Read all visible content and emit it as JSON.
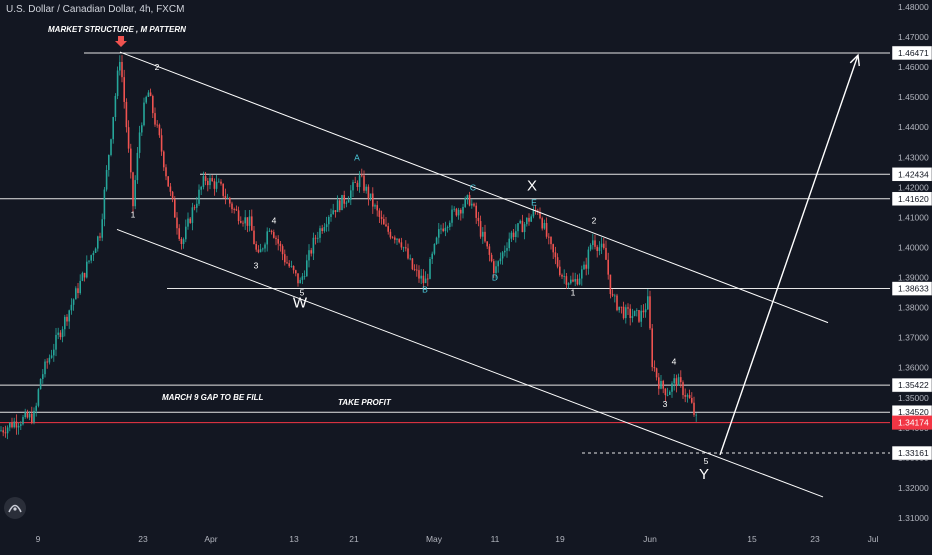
{
  "chart_title": "U.S. Dollar / Canadian Dollar, 4h, FXCM",
  "colors": {
    "background": "#131722",
    "up": "#26a69a",
    "down": "#ef5350",
    "line": "#ffffff",
    "axis_text": "#b2b5be",
    "current_price": "#f23645",
    "wave_label": "#ffffff",
    "correction_label": "#4dd0e1"
  },
  "chart_data": {
    "type": "candlestick",
    "symbol": "USDCAD",
    "timeframe": "4h",
    "ylim": [
      1.305,
      1.485
    ],
    "yticks": [
      "1.31000",
      "1.32000",
      "1.33000",
      "1.34000",
      "1.35000",
      "1.36000",
      "1.37000",
      "1.38000",
      "1.39000",
      "1.40000",
      "1.41000",
      "1.42000",
      "1.43000",
      "1.44000",
      "1.45000",
      "1.46000",
      "1.47000",
      "1.48000"
    ],
    "xticks": [
      "9",
      "23",
      "Apr",
      "13",
      "21",
      "May",
      "11",
      "19",
      "Jun",
      "15",
      "23",
      "Jul"
    ],
    "price_path": [
      {
        "x": 0,
        "y": 1.339
      },
      {
        "x": 15,
        "y": 1.342
      },
      {
        "x": 35,
        "y": 1.344
      },
      {
        "x": 40,
        "y": 1.356
      },
      {
        "x": 60,
        "y": 1.372
      },
      {
        "x": 80,
        "y": 1.388
      },
      {
        "x": 100,
        "y": 1.405
      },
      {
        "x": 110,
        "y": 1.435
      },
      {
        "x": 120,
        "y": 1.464
      },
      {
        "x": 126,
        "y": 1.442
      },
      {
        "x": 133,
        "y": 1.414
      },
      {
        "x": 140,
        "y": 1.44
      },
      {
        "x": 148,
        "y": 1.452
      },
      {
        "x": 160,
        "y": 1.435
      },
      {
        "x": 170,
        "y": 1.418
      },
      {
        "x": 182,
        "y": 1.401
      },
      {
        "x": 192,
        "y": 1.412
      },
      {
        "x": 205,
        "y": 1.423
      },
      {
        "x": 220,
        "y": 1.42
      },
      {
        "x": 235,
        "y": 1.412
      },
      {
        "x": 250,
        "y": 1.408
      },
      {
        "x": 258,
        "y": 1.396
      },
      {
        "x": 270,
        "y": 1.408
      },
      {
        "x": 285,
        "y": 1.396
      },
      {
        "x": 300,
        "y": 1.388
      },
      {
        "x": 315,
        "y": 1.403
      },
      {
        "x": 330,
        "y": 1.412
      },
      {
        "x": 345,
        "y": 1.416
      },
      {
        "x": 360,
        "y": 1.423
      },
      {
        "x": 372,
        "y": 1.415
      },
      {
        "x": 385,
        "y": 1.406
      },
      {
        "x": 400,
        "y": 1.403
      },
      {
        "x": 412,
        "y": 1.393
      },
      {
        "x": 425,
        "y": 1.388
      },
      {
        "x": 440,
        "y": 1.406
      },
      {
        "x": 455,
        "y": 1.412
      },
      {
        "x": 470,
        "y": 1.416
      },
      {
        "x": 482,
        "y": 1.404
      },
      {
        "x": 495,
        "y": 1.392
      },
      {
        "x": 510,
        "y": 1.404
      },
      {
        "x": 525,
        "y": 1.408
      },
      {
        "x": 538,
        "y": 1.413
      },
      {
        "x": 550,
        "y": 1.4
      },
      {
        "x": 562,
        "y": 1.391
      },
      {
        "x": 573,
        "y": 1.388
      },
      {
        "x": 585,
        "y": 1.393
      },
      {
        "x": 592,
        "y": 1.403
      },
      {
        "x": 605,
        "y": 1.398
      },
      {
        "x": 612,
        "y": 1.383
      },
      {
        "x": 625,
        "y": 1.378
      },
      {
        "x": 640,
        "y": 1.377
      },
      {
        "x": 648,
        "y": 1.382
      },
      {
        "x": 652,
        "y": 1.362
      },
      {
        "x": 660,
        "y": 1.354
      },
      {
        "x": 668,
        "y": 1.352
      },
      {
        "x": 676,
        "y": 1.356
      },
      {
        "x": 684,
        "y": 1.352
      },
      {
        "x": 690,
        "y": 1.349
      },
      {
        "x": 697,
        "y": 1.3417
      }
    ]
  },
  "price_levels": [
    {
      "price": 1.46471,
      "label": "1.46471",
      "style": "solid"
    },
    {
      "price": 1.42434,
      "label": "1.42434",
      "style": "solid"
    },
    {
      "price": 1.4162,
      "label": "1.41620",
      "style": "solid"
    },
    {
      "price": 1.38633,
      "label": "1.38633",
      "style": "solid"
    },
    {
      "price": 1.35422,
      "label": "1.35422",
      "style": "solid"
    },
    {
      "price": 1.3452,
      "label": "1.34520",
      "style": "solid"
    },
    {
      "price": 1.33161,
      "label": "1.33161",
      "style": "dashed"
    }
  ],
  "current_price": {
    "price": 1.34174,
    "label": "1.34174"
  },
  "channel": {
    "upper": [
      {
        "x": 120,
        "y": 1.465
      },
      {
        "x": 828,
        "y": 1.375
      }
    ],
    "lower": [
      {
        "x": 117,
        "y": 1.406
      },
      {
        "x": 823,
        "y": 1.317
      }
    ]
  },
  "projection_arrow": [
    {
      "x": 720,
      "y": 1.331
    },
    {
      "x": 858,
      "y": 1.464
    }
  ],
  "wave_labels": [
    {
      "text": "2",
      "x": 157,
      "y": 1.459,
      "color": "wave"
    },
    {
      "text": "1",
      "x": 133,
      "y": 1.41,
      "color": "wave"
    },
    {
      "text": "4",
      "x": 274,
      "y": 1.408,
      "color": "wave"
    },
    {
      "text": "3",
      "x": 256,
      "y": 1.393,
      "color": "wave"
    },
    {
      "text": "5",
      "x": 302,
      "y": 1.384,
      "color": "wave"
    },
    {
      "text": "W",
      "x": 300,
      "y": 1.38,
      "color": "wave",
      "big": true
    },
    {
      "text": "A",
      "x": 357,
      "y": 1.429,
      "color": "corr"
    },
    {
      "text": "B",
      "x": 425,
      "y": 1.385,
      "color": "corr"
    },
    {
      "text": "C",
      "x": 473,
      "y": 1.419,
      "color": "corr"
    },
    {
      "text": "D",
      "x": 495,
      "y": 1.389,
      "color": "corr"
    },
    {
      "text": "E",
      "x": 534,
      "y": 1.414,
      "color": "corr"
    },
    {
      "text": "X",
      "x": 532,
      "y": 1.419,
      "color": "wave",
      "big": true
    },
    {
      "text": "2",
      "x": 594,
      "y": 1.408,
      "color": "wave"
    },
    {
      "text": "1",
      "x": 573,
      "y": 1.384,
      "color": "wave"
    },
    {
      "text": "4",
      "x": 674,
      "y": 1.361,
      "color": "wave"
    },
    {
      "text": "3",
      "x": 665,
      "y": 1.347,
      "color": "wave"
    },
    {
      "text": "5",
      "x": 706,
      "y": 1.328,
      "color": "wave"
    },
    {
      "text": "Y",
      "x": 704,
      "y": 1.323,
      "color": "wave",
      "big": true
    }
  ],
  "annotations": {
    "market_structure": "MARKET STRUCTURE , M PATTERN",
    "gap_fill": "MARCH 9 GAP TO BE FILL",
    "take_profit": "TAKE PROFIT"
  }
}
